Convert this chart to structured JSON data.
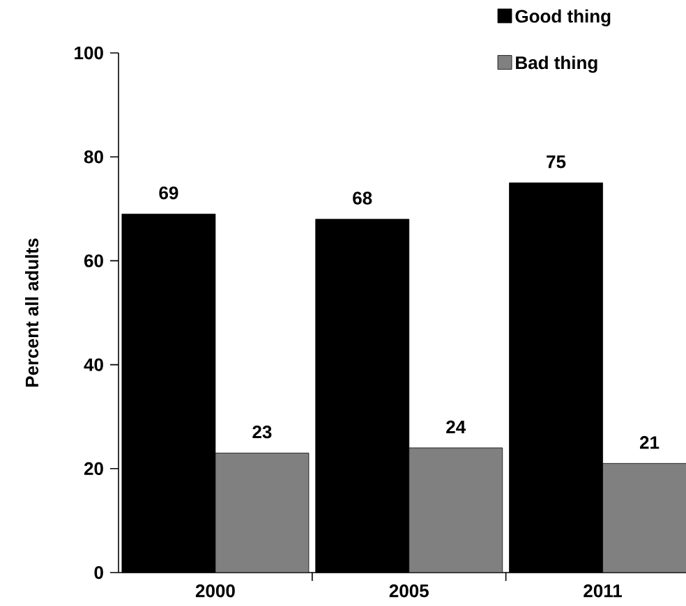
{
  "chart_data": {
    "type": "bar",
    "ylabel": "Percent all adults",
    "categories": [
      "2000",
      "2005",
      "2011"
    ],
    "series": [
      {
        "name": "Good thing",
        "color": "#000000",
        "values": [
          69,
          68,
          75
        ]
      },
      {
        "name": "Bad thing",
        "color": "#808080",
        "values": [
          23,
          24,
          21
        ]
      }
    ],
    "ylim": [
      0,
      100
    ],
    "yticks": [
      0,
      20,
      40,
      60,
      80,
      100
    ],
    "data_labels": true,
    "legend": "top right",
    "grid": false
  }
}
